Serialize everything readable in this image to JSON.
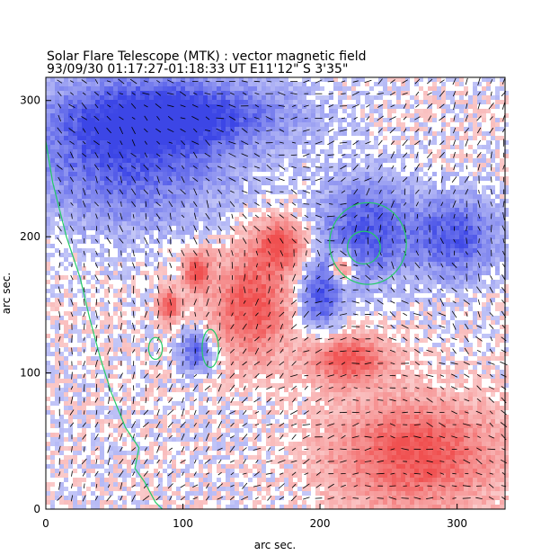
{
  "header": {
    "title": "Solar Flare Telescope (MTK) : vector magnetic field",
    "subtitle": "93/09/30  01:17:27-01:18:33 UT    E11'12\"  S 3'35\""
  },
  "axes": {
    "xlabel": "arc sec.",
    "ylabel": "arc sec.",
    "xlim": [
      0,
      335
    ],
    "ylim": [
      0,
      317
    ],
    "xticks": [
      "0",
      "100",
      "200",
      "300"
    ],
    "yticks": [
      "0",
      "100",
      "200",
      "300"
    ]
  },
  "map": {
    "positive_color": "#f05050",
    "negative_color": "#3c46e6",
    "background_color": "#ffffff",
    "contour_color": "#22cc66",
    "vector_color": "#000000",
    "positive_regions": [
      {
        "x": 150,
        "y": 150,
        "rx": 28,
        "ry": 40
      },
      {
        "x": 172,
        "y": 195,
        "rx": 18,
        "ry": 18
      },
      {
        "x": 110,
        "y": 175,
        "rx": 10,
        "ry": 14
      },
      {
        "x": 90,
        "y": 150,
        "rx": 8,
        "ry": 12
      },
      {
        "x": 216,
        "y": 178,
        "rx": 8,
        "ry": 10
      },
      {
        "x": 270,
        "y": 40,
        "rx": 60,
        "ry": 40
      },
      {
        "x": 220,
        "y": 110,
        "rx": 28,
        "ry": 18
      }
    ],
    "negative_regions": [
      {
        "x": 235,
        "y": 205,
        "rx": 35,
        "ry": 38
      },
      {
        "x": 200,
        "y": 155,
        "rx": 15,
        "ry": 25
      },
      {
        "x": 110,
        "y": 115,
        "rx": 12,
        "ry": 15
      },
      {
        "x": 60,
        "y": 260,
        "rx": 75,
        "ry": 50
      },
      {
        "x": 100,
        "y": 290,
        "rx": 80,
        "ry": 25
      },
      {
        "x": 300,
        "y": 200,
        "rx": 30,
        "ry": 30
      }
    ]
  }
}
